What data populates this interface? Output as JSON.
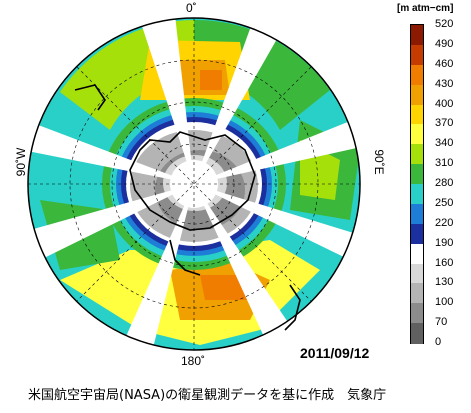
{
  "labels": {
    "top": "0˚",
    "bottom": "180˚",
    "left": "90˚W",
    "right": "90˚E"
  },
  "date": "2011/09/12",
  "credit": "米国航空宇宙局(NASA)の衛星観測データを基に作成　気象庁",
  "colorbar": {
    "unit": "[m atm−cm]",
    "ticks": [
      "520",
      "490",
      "460",
      "430",
      "400",
      "370",
      "340",
      "310",
      "280",
      "250",
      "220",
      "190",
      "160",
      "130",
      "100",
      "70",
      "0"
    ],
    "colors": [
      "#8b1a00",
      "#c63b00",
      "#f07d00",
      "#f0a000",
      "#ffd400",
      "#ffff40",
      "#a6e00a",
      "#3bb83b",
      "#29d0c8",
      "#1e7dd6",
      "#1c2f9e",
      "#ffffff",
      "#d8d8d8",
      "#b4b4b4",
      "#8c8c8c",
      "#606060",
      "#2a2a2a"
    ]
  }
}
